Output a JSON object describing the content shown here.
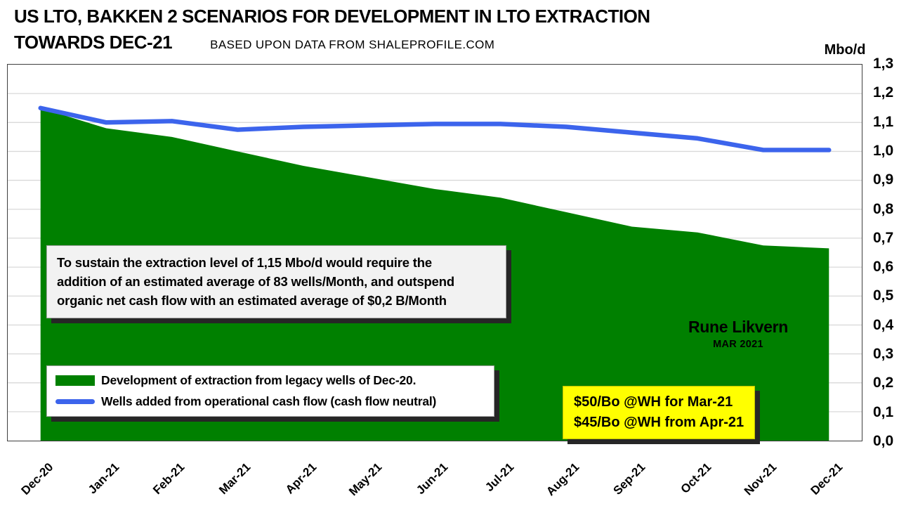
{
  "title_line1": "US LTO, BAKKEN 2 SCENARIOS FOR DEVELOPMENT IN LTO EXTRACTION",
  "title_line2": "TOWARDS DEC-21",
  "subtitle": "BASED UPON DATA FROM SHALEPROFILE.COM",
  "unit_label": "Mbo/d",
  "annotation": {
    "text": "To sustain the extraction level of 1,15 Mbo/d would require the\naddition of an estimated average of 83 wells/Month, and outspend\norganic net cash flow with an estimated average of $0,2 B/Month"
  },
  "signature": {
    "name": "Rune Likvern",
    "date": "MAR 2021"
  },
  "price_box": {
    "line1": "$50/Bo @WH for Mar-21",
    "line2": "$45/Bo @WH from Apr-21"
  },
  "colors": {
    "legacy_area": "#008000",
    "cash_flow_line": "#3c64ec",
    "gridline": "#d9d9d9",
    "plot_border": "#3f3f3f",
    "annotation_bg": "#f2f2f2",
    "callout_bg": "#ffff00",
    "shadow": "#262626"
  },
  "chart_data": {
    "type": "area+line",
    "title": "US LTO, BAKKEN 2 SCENARIOS FOR DEVELOPMENT IN LTO EXTRACTION TOWARDS DEC-21",
    "subtitle": "BASED UPON DATA FROM SHALEPROFILE.COM",
    "ylabel": "Mbo/d",
    "ylim": [
      0,
      1.3
    ],
    "grid": true,
    "legend_position": "bottom-left-inside",
    "categories": [
      "Dec-20",
      "Jan-21",
      "Feb-21",
      "Mar-21",
      "Apr-21",
      "May-21",
      "Jun-21",
      "Jul-21",
      "Aug-21",
      "Sep-21",
      "Oct-21",
      "Nov-21",
      "Dec-21"
    ],
    "y_ticks": [
      {
        "v": 0.0,
        "label": "0,0"
      },
      {
        "v": 0.1,
        "label": "0,1"
      },
      {
        "v": 0.2,
        "label": "0,2"
      },
      {
        "v": 0.3,
        "label": "0,3"
      },
      {
        "v": 0.4,
        "label": "0,4"
      },
      {
        "v": 0.5,
        "label": "0,5"
      },
      {
        "v": 0.6,
        "label": "0,6"
      },
      {
        "v": 0.7,
        "label": "0,7"
      },
      {
        "v": 0.8,
        "label": "0,8"
      },
      {
        "v": 0.9,
        "label": "0,9"
      },
      {
        "v": 1.0,
        "label": "1,0"
      },
      {
        "v": 1.1,
        "label": "1,1"
      },
      {
        "v": 1.2,
        "label": "1,2"
      },
      {
        "v": 1.3,
        "label": "1,3"
      }
    ],
    "series": [
      {
        "name": "Development of extraction from legacy wells of Dec-20.",
        "type": "area",
        "color": "#008000",
        "values": [
          1.15,
          1.08,
          1.05,
          1.0,
          0.95,
          0.91,
          0.87,
          0.84,
          0.79,
          0.74,
          0.72,
          0.675,
          0.665
        ]
      },
      {
        "name": "Wells added from operational cash flow (cash flow neutral)",
        "type": "line",
        "color": "#3c64ec",
        "values": [
          1.15,
          1.1,
          1.105,
          1.075,
          1.085,
          1.09,
          1.095,
          1.095,
          1.085,
          1.065,
          1.045,
          1.005,
          1.005
        ]
      }
    ]
  }
}
